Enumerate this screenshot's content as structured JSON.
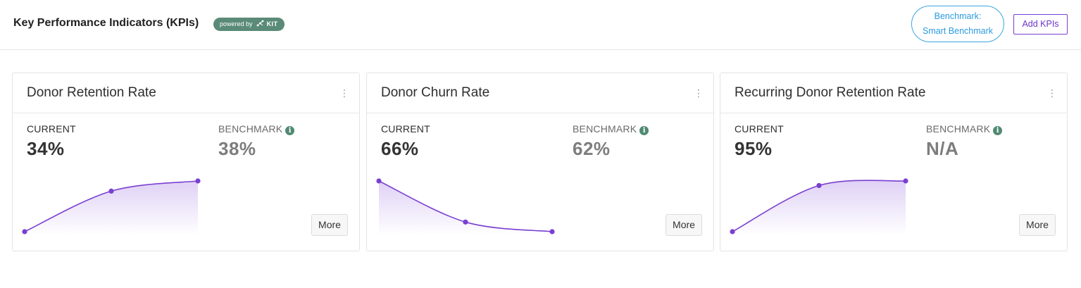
{
  "header": {
    "title": "Key Performance Indicators (KPIs)",
    "badge_prefix": "powered by",
    "badge_brand": "KIT",
    "benchmark_line1": "Benchmark:",
    "benchmark_line2": "Smart Benchmark",
    "add_kpis_label": "Add KPIs"
  },
  "colors": {
    "accent": "#7a3fd1",
    "badge_green": "#5a8a78",
    "benchmark_blue": "#2b9be0",
    "info_green": "#4f8a72"
  },
  "icons": {
    "card_menu": "kebab-menu-icon",
    "benchmark_info": "info-icon",
    "badge_logo": "kit-logo-icon"
  },
  "cards": [
    {
      "title": "Donor Retention Rate",
      "current_label": "CURRENT",
      "current_value": "34%",
      "benchmark_label": "BENCHMARK",
      "benchmark_value": "38%",
      "more_label": "More",
      "trend": [
        0.0,
        0.8,
        1.0
      ]
    },
    {
      "title": "Donor Churn Rate",
      "current_label": "CURRENT",
      "current_value": "66%",
      "benchmark_label": "BENCHMARK",
      "benchmark_value": "62%",
      "more_label": "More",
      "trend": [
        1.0,
        0.19,
        0.0
      ]
    },
    {
      "title": "Recurring Donor Retention Rate",
      "current_label": "CURRENT",
      "current_value": "95%",
      "benchmark_label": "BENCHMARK",
      "benchmark_value": "N/A",
      "more_label": "More",
      "trend": [
        0.0,
        0.91,
        1.0
      ]
    }
  ]
}
